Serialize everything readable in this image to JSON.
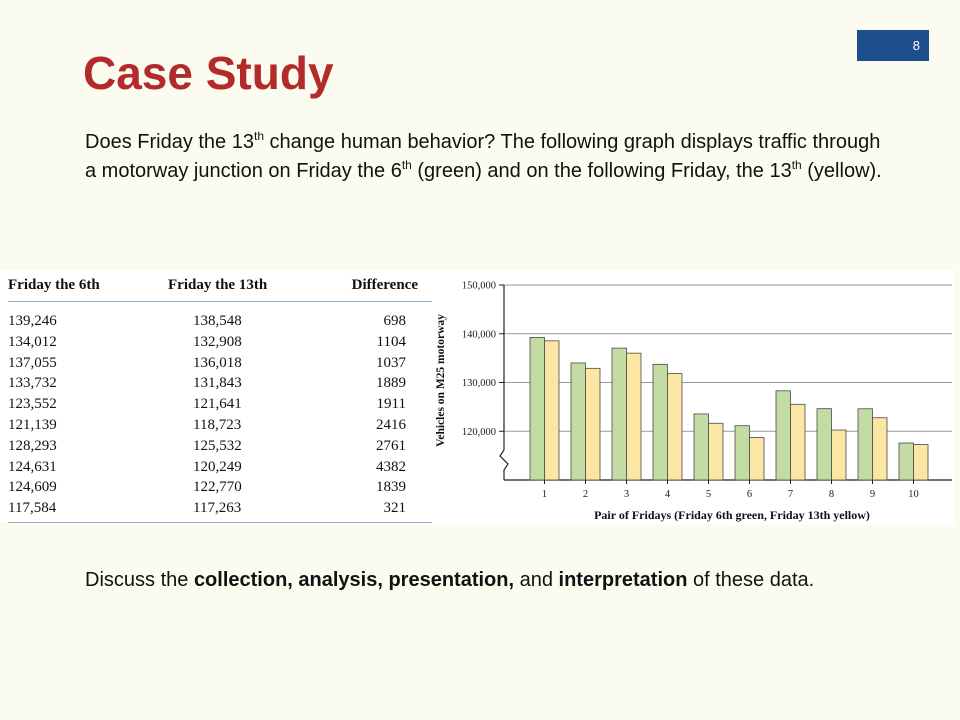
{
  "slide": {
    "number": "8",
    "title": "Case Study",
    "intro": {
      "p1": "Does Friday the 13",
      "sup1": "th",
      "p2": " change human behavior? The following graph displays traffic through a motorway junction on Friday the 6",
      "sup2": "th",
      "p3": " (green) and on the following Friday, the 13",
      "sup3": "th",
      "p4": " (yellow)."
    },
    "closing": {
      "t1": "Discuss the ",
      "b1": "collection, analysis, presentation,",
      "t2": " and ",
      "b2": "interpretation",
      "t3": " of these data."
    }
  },
  "table": {
    "headers": [
      "Friday the 6th",
      "Friday the 13th",
      "Difference"
    ],
    "rows": [
      [
        "139,246",
        "138,548",
        "698"
      ],
      [
        "134,012",
        "132,908",
        "1104"
      ],
      [
        "137,055",
        "136,018",
        "1037"
      ],
      [
        "133,732",
        "131,843",
        "1889"
      ],
      [
        "123,552",
        "121,641",
        "1911"
      ],
      [
        "121,139",
        "118,723",
        "2416"
      ],
      [
        "128,293",
        "125,532",
        "2761"
      ],
      [
        "124,631",
        "120,249",
        "4382"
      ],
      [
        "124,609",
        "122,770",
        "1839"
      ],
      [
        "117,584",
        "117,263",
        "321"
      ]
    ]
  },
  "chart_data": {
    "type": "bar",
    "categories": [
      "1",
      "2",
      "3",
      "4",
      "5",
      "6",
      "7",
      "8",
      "9",
      "10"
    ],
    "series": [
      {
        "name": "Friday 6th",
        "color": "#c2dca4",
        "values": [
          139246,
          134012,
          137055,
          133732,
          123552,
          121139,
          128293,
          124631,
          124609,
          117584
        ]
      },
      {
        "name": "Friday 13th",
        "color": "#fbe6a4",
        "values": [
          138548,
          132908,
          136018,
          131843,
          121641,
          118723,
          125532,
          120249,
          122770,
          117263
        ]
      }
    ],
    "yticks": [
      120000,
      130000,
      140000,
      150000
    ],
    "ytick_labels": [
      "120,000",
      "130,000",
      "140,000",
      "150,000"
    ],
    "ylim": [
      110000,
      150000
    ],
    "axis_break": true,
    "xlabel": "Pair of Fridays (Friday 6th green, Friday 13th yellow)",
    "ylabel": "Vehicles on M25 motorway",
    "grid": true
  }
}
